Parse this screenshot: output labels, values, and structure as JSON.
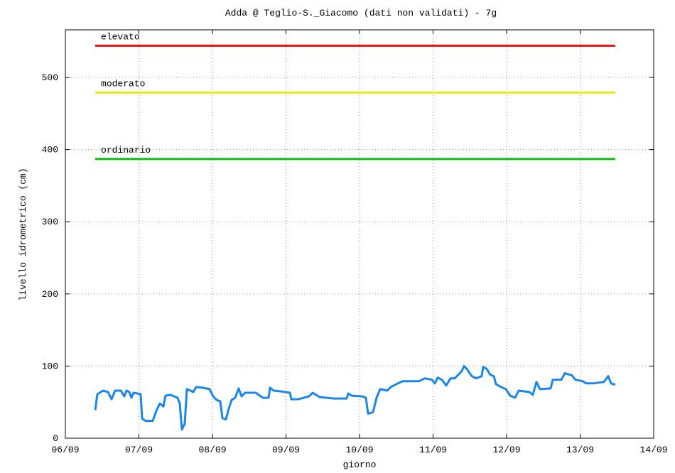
{
  "chart_data": {
    "type": "line",
    "title": "Adda @  Teglio-S._Giacomo (dati non validati) - 7g",
    "x_label": "giorno",
    "y_label": "livello idrometrico (cm)",
    "xlim": [
      6,
      14
    ],
    "xticks": [
      {
        "value": 6,
        "label": "06/09"
      },
      {
        "value": 7,
        "label": "07/09"
      },
      {
        "value": 8,
        "label": "08/09"
      },
      {
        "value": 9,
        "label": "09/09"
      },
      {
        "value": 10,
        "label": "10/09"
      },
      {
        "value": 11,
        "label": "11/09"
      },
      {
        "value": 12,
        "label": "12/09"
      },
      {
        "value": 13,
        "label": "13/09"
      },
      {
        "value": 14,
        "label": "14/09"
      }
    ],
    "ylim": [
      0,
      566
    ],
    "yticks": [
      0,
      100,
      200,
      300,
      400,
      500
    ],
    "grid": true,
    "thresholds_x": [
      6.406,
      13.478
    ],
    "thresholds": [
      {
        "name": "elevato",
        "value": 544,
        "color": "#ee1111"
      },
      {
        "name": "moderato",
        "value": 479,
        "color": "#e8e820"
      },
      {
        "name": "ordinario",
        "value": 387,
        "color": "#11bb11"
      }
    ],
    "series": [
      {
        "color": "#1a86e8",
        "x": [
          6.406,
          6.435,
          6.512,
          6.58,
          6.628,
          6.676,
          6.754,
          6.802,
          6.831,
          6.87,
          6.899,
          6.928,
          7.024,
          7.043,
          7.092,
          7.188,
          7.237,
          7.285,
          7.333,
          7.362,
          7.43,
          7.527,
          7.556,
          7.585,
          7.623,
          7.652,
          7.7,
          7.739,
          7.778,
          7.865,
          7.961,
          8.01,
          8.058,
          8.106,
          8.135,
          8.184,
          8.222,
          8.261,
          8.309,
          8.357,
          8.396,
          8.444,
          8.589,
          8.686,
          8.763,
          8.783,
          8.831,
          8.928,
          9.053,
          9.072,
          9.169,
          9.314,
          9.362,
          9.459,
          9.652,
          9.826,
          9.845,
          9.894,
          10.039,
          10.087,
          10.116,
          10.184,
          10.232,
          10.28,
          10.377,
          10.425,
          10.522,
          10.589,
          10.812,
          10.889,
          10.986,
          11.024,
          11.063,
          11.121,
          11.179,
          11.237,
          11.295,
          11.391,
          11.42,
          11.459,
          11.527,
          11.585,
          11.662,
          11.681,
          11.729,
          11.778,
          11.826,
          11.855,
          11.923,
          11.99,
          12.048,
          12.116,
          12.164,
          12.309,
          12.357,
          12.406,
          12.454,
          12.599,
          12.628,
          12.744,
          12.792,
          12.889,
          12.937,
          13.034,
          13.082,
          13.179,
          13.324,
          13.382,
          13.42,
          13.478
        ],
        "values": [
          39,
          61,
          66,
          64,
          54,
          66,
          66,
          58,
          66,
          64,
          56,
          63,
          61,
          27,
          24,
          24,
          38,
          48,
          44,
          59,
          60,
          56,
          48,
          12,
          20,
          68,
          66,
          64,
          71,
          70,
          68,
          58,
          53,
          51,
          28,
          26,
          41,
          53,
          56,
          69,
          58,
          63,
          63,
          56,
          56,
          70,
          66,
          65,
          63,
          54,
          54,
          58,
          63,
          57,
          55,
          55,
          62,
          59,
          58,
          56,
          34,
          36,
          56,
          68,
          66,
          71,
          76,
          79,
          79,
          83,
          81,
          76,
          84,
          81,
          73,
          83,
          83,
          93,
          100,
          96,
          86,
          83,
          86,
          99,
          96,
          88,
          86,
          75,
          71,
          68,
          59,
          56,
          66,
          64,
          60,
          78,
          68,
          69,
          81,
          81,
          90,
          87,
          81,
          79,
          76,
          76,
          78,
          86,
          76,
          74
        ]
      }
    ]
  }
}
